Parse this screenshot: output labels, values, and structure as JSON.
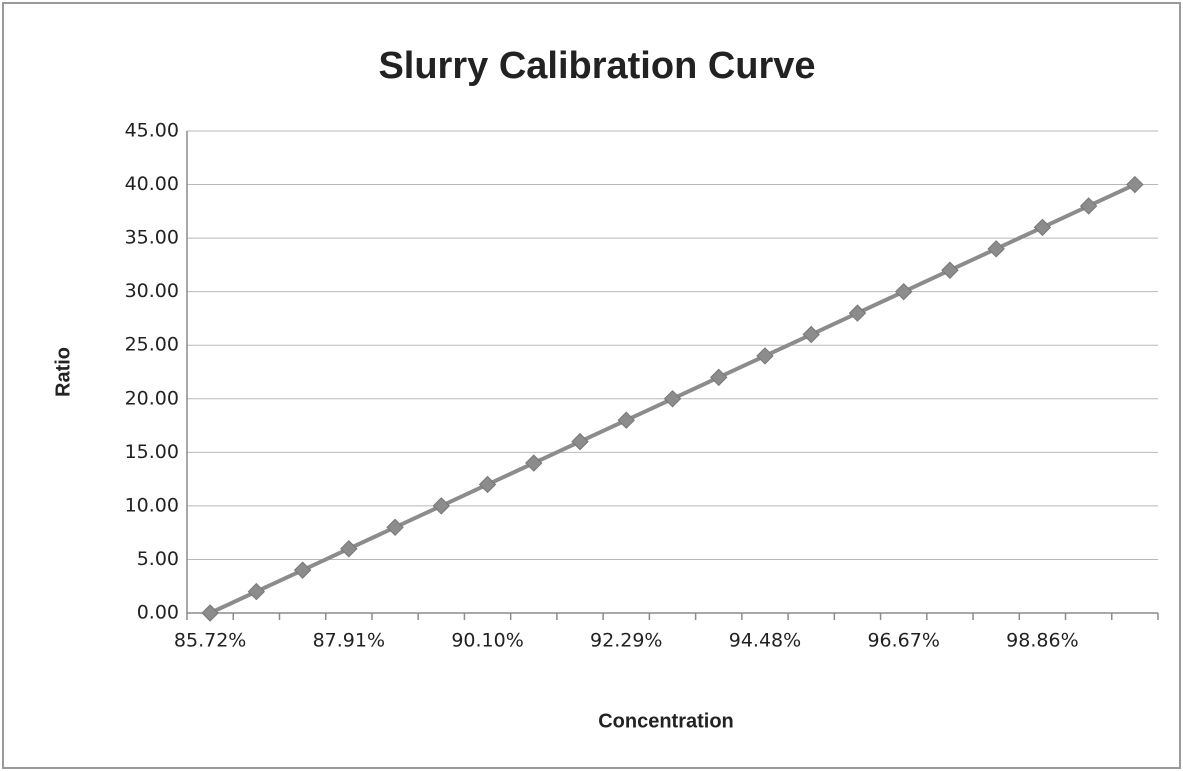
{
  "chart_data": {
    "type": "line",
    "title": "Slurry Calibration Curve",
    "x_label": "Concentration",
    "y_label": "Ratio",
    "categories": [
      "85.72%",
      null,
      null,
      "87.91%",
      null,
      null,
      "90.10%",
      null,
      null,
      "92.29%",
      null,
      null,
      "94.48%",
      null,
      null,
      "96.67%",
      null,
      null,
      "98.86%",
      null,
      null
    ],
    "series": [
      {
        "name": "Ratio",
        "color": "#8c8c8c",
        "values": [
          0,
          2,
          4,
          6,
          8,
          10,
          12,
          14,
          16,
          18,
          20,
          22,
          24,
          26,
          28,
          30,
          32,
          34,
          36,
          38,
          40
        ]
      }
    ],
    "ylim": [
      0,
      45
    ],
    "yticks": [
      {
        "value": 0,
        "label": "0.00"
      },
      {
        "value": 5,
        "label": "5.00"
      },
      {
        "value": 10,
        "label": "10.00"
      },
      {
        "value": 15,
        "label": "15.00"
      },
      {
        "value": 20,
        "label": "20.00"
      },
      {
        "value": 25,
        "label": "25.00"
      },
      {
        "value": 30,
        "label": "30.00"
      },
      {
        "value": 35,
        "label": "35.00"
      },
      {
        "value": 40,
        "label": "40.00"
      },
      {
        "value": 45,
        "label": "45.00"
      }
    ],
    "grid": true
  }
}
